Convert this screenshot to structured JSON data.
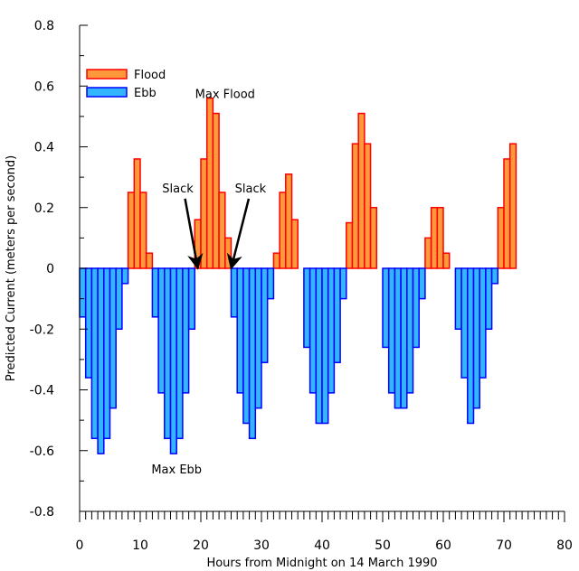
{
  "chart_data": {
    "type": "bar",
    "title": "",
    "xlabel": "Hours from Midnight on 14 March 1990",
    "ylabel": "Predicted Current (meters per second)",
    "xlim": [
      0,
      80
    ],
    "ylim": [
      -0.8,
      0.8
    ],
    "x_ticks": [
      "0",
      "10",
      "20",
      "30",
      "40",
      "50",
      "60",
      "70",
      "80"
    ],
    "y_ticks": [
      "0.8",
      "0.6",
      "0.4",
      "0.2",
      "0",
      "-0.2",
      "-0.4",
      "-0.6",
      "-0.8"
    ],
    "legend": [
      {
        "name": "Flood",
        "color": "#ff0000",
        "fill": "#ff9a3c"
      },
      {
        "name": "Ebb",
        "color": "#0000ff",
        "fill": "#33b5ff"
      }
    ],
    "legend_position": "top-left",
    "series": [
      {
        "name": "Flood",
        "fill": "#ff9a3c",
        "stroke": "#ff0000",
        "x": [
          8.5,
          9.5,
          10.5,
          11.5,
          19.5,
          20.5,
          21.5,
          22.5,
          23.5,
          24.5,
          32.5,
          33.5,
          34.5,
          35.5,
          44.5,
          45.5,
          46.5,
          47.5,
          48.5,
          57.5,
          58.5,
          59.5,
          60.5,
          61.5,
          69.5,
          70.5,
          71.5
        ],
        "values": [
          0.25,
          0.36,
          0.25,
          0.05,
          0.16,
          0.36,
          0.56,
          0.51,
          0.25,
          0.1,
          0.05,
          0.25,
          0.31,
          0.16,
          0.15,
          0.41,
          0.51,
          0.41,
          0.2,
          0.1,
          0.2,
          0.2,
          0.05,
          0.0,
          0.2,
          0.36,
          0.41
        ]
      },
      {
        "name": "Ebb",
        "fill": "#33b5ff",
        "stroke": "#0000ff",
        "x": [
          0.5,
          1.5,
          2.5,
          3.5,
          4.5,
          5.5,
          6.5,
          7.5,
          12.5,
          13.5,
          14.5,
          15.5,
          16.5,
          17.5,
          18.5,
          25.5,
          26.5,
          27.5,
          28.5,
          29.5,
          30.5,
          31.5,
          37.5,
          38.5,
          39.5,
          40.5,
          41.5,
          42.5,
          43.5,
          50.5,
          51.5,
          52.5,
          53.5,
          54.5,
          55.5,
          56.5,
          62.5,
          63.5,
          64.5,
          65.5,
          66.5,
          67.5,
          68.5
        ],
        "values": [
          -0.16,
          -0.36,
          -0.56,
          -0.61,
          -0.56,
          -0.46,
          -0.2,
          -0.05,
          -0.16,
          -0.41,
          -0.56,
          -0.61,
          -0.56,
          -0.41,
          -0.2,
          -0.16,
          -0.41,
          -0.51,
          -0.56,
          -0.46,
          -0.31,
          -0.1,
          -0.26,
          -0.41,
          -0.51,
          -0.51,
          -0.41,
          -0.31,
          -0.1,
          -0.26,
          -0.41,
          -0.46,
          -0.46,
          -0.41,
          -0.26,
          -0.1,
          -0.2,
          -0.36,
          -0.51,
          -0.46,
          -0.36,
          -0.2,
          -0.05
        ]
      }
    ],
    "annotations": [
      {
        "text": "Max Flood",
        "x": 24.0,
        "y": 0.575
      },
      {
        "text": "Max Ebb",
        "x": 16.0,
        "y": -0.66
      },
      {
        "text": "Slack",
        "x": 16.2,
        "y": 0.265,
        "arrow_to": [
          19.5,
          0.0
        ]
      },
      {
        "text": "Slack",
        "x": 28.2,
        "y": 0.265,
        "arrow_to": [
          25.0,
          0.0
        ]
      }
    ]
  }
}
